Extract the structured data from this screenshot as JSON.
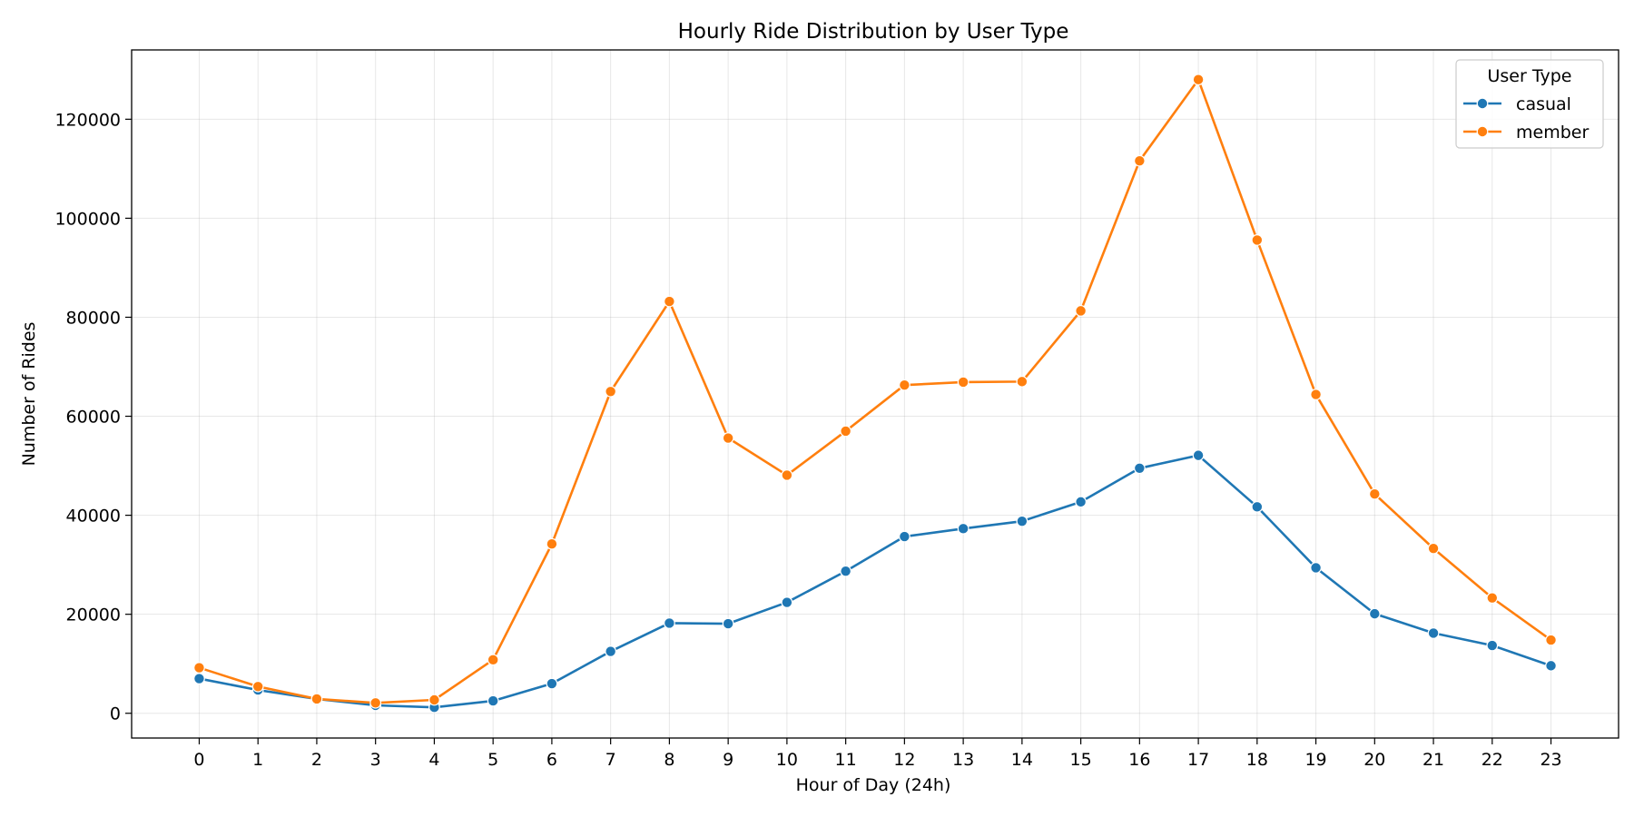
{
  "chart_data": {
    "type": "line",
    "title": "Hourly Ride Distribution by User Type",
    "xlabel": "Hour of Day (24h)",
    "ylabel": "Number of Rides",
    "x": [
      0,
      1,
      2,
      3,
      4,
      5,
      6,
      7,
      8,
      9,
      10,
      11,
      12,
      13,
      14,
      15,
      16,
      17,
      18,
      19,
      20,
      21,
      22,
      23
    ],
    "xticks": [
      "0",
      "1",
      "2",
      "3",
      "4",
      "5",
      "6",
      "7",
      "8",
      "9",
      "10",
      "11",
      "12",
      "13",
      "14",
      "15",
      "16",
      "17",
      "18",
      "19",
      "20",
      "21",
      "22",
      "23"
    ],
    "yticks": [
      0,
      20000,
      40000,
      60000,
      80000,
      100000,
      120000
    ],
    "ytick_labels": [
      "0",
      "20000",
      "40000",
      "60000",
      "80000",
      "100000",
      "120000"
    ],
    "xlim": [
      -1.15,
      24.15
    ],
    "ylim": [
      -5000,
      134000
    ],
    "grid": true,
    "legend": {
      "title": "User Type",
      "placement": "top-right"
    },
    "series": [
      {
        "name": "casual",
        "color": "#1f77b4",
        "marker": "circle",
        "values": [
          7000,
          4700,
          2900,
          1600,
          1200,
          2500,
          6000,
          12500,
          18200,
          18100,
          22400,
          28700,
          35700,
          37300,
          38800,
          42700,
          49500,
          52100,
          41700,
          29400,
          20100,
          16200,
          13700,
          9600
        ]
      },
      {
        "name": "member",
        "color": "#ff7f0e",
        "marker": "circle",
        "values": [
          9200,
          5400,
          2900,
          2100,
          2700,
          10800,
          34200,
          65000,
          83200,
          55600,
          48100,
          57000,
          66300,
          66900,
          67000,
          81300,
          111600,
          128000,
          95600,
          64400,
          44300,
          33300,
          23300,
          14800
        ]
      }
    ]
  }
}
